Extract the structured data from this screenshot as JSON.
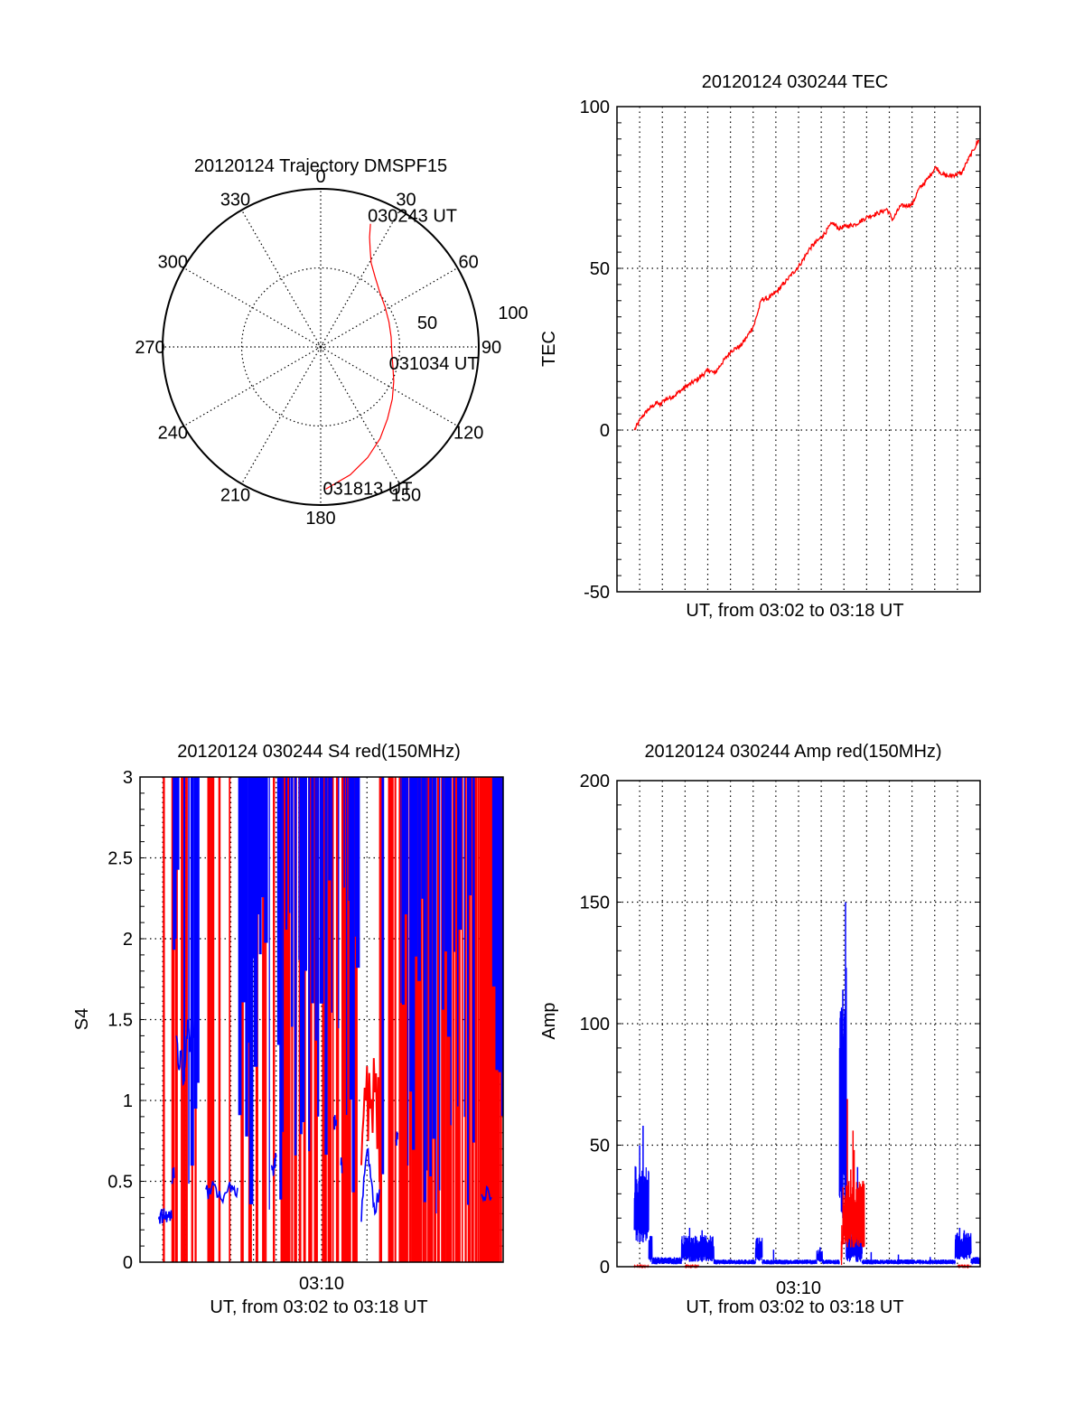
{
  "chart_data": [
    {
      "id": "trajectory",
      "type": "scatter",
      "subtype": "polar",
      "title": "20120124 Trajectory DMSPF15",
      "azimuth_ticks": [
        "0",
        "30",
        "60",
        "90",
        "120",
        "150",
        "180",
        "210",
        "240",
        "270",
        "300",
        "330"
      ],
      "radial_ticks": [
        "50",
        "100"
      ],
      "radial_range": [
        0,
        100
      ],
      "grid": true,
      "series": [
        {
          "name": "trajectory",
          "color": "#ff0000",
          "points_az_r": [
            [
              22,
              84
            ],
            [
              24,
              76
            ],
            [
              27,
              69
            ],
            [
              31,
              62
            ],
            [
              38,
              56
            ],
            [
              47,
              51
            ],
            [
              58,
              48
            ],
            [
              70,
              46
            ],
            [
              82,
              45
            ],
            [
              93,
              45
            ],
            [
              104,
              47
            ],
            [
              115,
              51
            ],
            [
              126,
              56
            ],
            [
              137,
              62
            ],
            [
              147,
              69
            ],
            [
              157,
              76
            ],
            [
              167,
              83
            ],
            [
              178,
              90
            ]
          ]
        }
      ],
      "annotations": [
        {
          "text": "030243 UT",
          "az": 22,
          "r": 84
        },
        {
          "text": "031034 UT",
          "az": 93,
          "r": 45
        },
        {
          "text": "031813 UT",
          "az": 178,
          "r": 90
        }
      ]
    },
    {
      "id": "tec",
      "type": "line",
      "title": "20120124 030244 TEC",
      "xlabel": "UT, from 03:02 to 03:18 UT",
      "ylabel": "TEC",
      "xlim_minutes": [
        0,
        16
      ],
      "ylim": [
        -50,
        100
      ],
      "yticks": [
        "-50",
        "0",
        "50",
        "100"
      ],
      "xticks": [],
      "grid": true,
      "series": [
        {
          "name": "TEC",
          "color": "#ff0000",
          "x_minutes": [
            0.77,
            1.06,
            1.4,
            1.79,
            1.9,
            2.06,
            2.5,
            3.05,
            3.5,
            4.05,
            4.3,
            4.6,
            5.05,
            5.44,
            5.7,
            6.04,
            6.37,
            6.7,
            7.04,
            7.5,
            8.06,
            8.5,
            9.07,
            9.5,
            9.76,
            10.07,
            10.5,
            11.06,
            11.5,
            11.9,
            12.15,
            12.48,
            13.01,
            13.28,
            13.68,
            14.05,
            14.35,
            14.61,
            15.2,
            15.4,
            15.7,
            15.94
          ],
          "y": [
            0,
            3.7,
            6.5,
            8.6,
            7.5,
            9.3,
            10.5,
            13.5,
            15.5,
            18.6,
            17.5,
            20.5,
            24.6,
            26,
            28.5,
            32.5,
            40.4,
            40.8,
            42.8,
            46.5,
            51.1,
            56.2,
            60.1,
            64.1,
            62.3,
            63,
            63.6,
            66,
            67,
            68.3,
            65,
            69.2,
            69.7,
            74.3,
            77.6,
            81.3,
            79,
            78.5,
            79.5,
            82.7,
            86.5,
            89.7
          ]
        }
      ]
    },
    {
      "id": "s4",
      "type": "line",
      "title": "20120124 030244 S4 red(150MHz)",
      "xlabel": "UT, from 03:02 to 03:18 UT",
      "ylabel": "S4",
      "xlim_minutes": [
        0,
        16
      ],
      "ylim": [
        0,
        3
      ],
      "yticks": [
        "0",
        "0.5",
        "1",
        "1.5",
        "2",
        "2.5",
        "3"
      ],
      "xticks": [
        {
          "minute": 8,
          "label": "03:10"
        }
      ],
      "grid": true,
      "series": [
        {
          "name": "blue",
          "color": "#0000ff",
          "segments": [
            {
              "x_minutes": [
                0.8,
                0.9,
                1.0,
                1.1,
                1.2,
                1.3,
                1.4
              ],
              "y": [
                0.27,
                0.3,
                0.26,
                0.29,
                0.28,
                0.3,
                0.27
              ]
            },
            {
              "x_minutes": [
                1.4,
                1.45,
                1.5
              ],
              "y": [
                0.5,
                0.58,
                0.52
              ]
            },
            {
              "x_minutes": [
                1.6,
                1.7,
                1.8,
                1.9,
                2.0,
                2.1,
                2.2,
                2.3,
                2.4
              ],
              "y": [
                1.4,
                1.2,
                1.3,
                1.1,
                1.25,
                1.5,
                1.3,
                1.6,
                1.4
              ]
            },
            {
              "x_minutes": [
                2.9,
                3.1,
                3.3,
                3.5,
                3.7,
                3.9,
                4.1,
                4.3
              ],
              "y": [
                0.45,
                0.42,
                0.48,
                0.44,
                0.41,
                0.47,
                0.45,
                0.46
              ]
            },
            {
              "x_minutes": [
                5.8,
                5.9,
                6.0
              ],
              "y": [
                0.6,
                0.58,
                0.65
              ]
            },
            {
              "x_minutes": [
                8.55,
                8.6,
                8.65
              ],
              "y": [
                0.9,
                0.85,
                0.88
              ]
            },
            {
              "x_minutes": [
                8.85,
                8.9
              ],
              "y": [
                0.6,
                0.55
              ]
            },
            {
              "x_minutes": [
                9.75,
                9.9,
                10.05,
                10.2,
                10.35,
                10.55
              ],
              "y": [
                0.25,
                0.55,
                0.7,
                0.5,
                0.3,
                0.45
              ]
            },
            {
              "x_minutes": [
                11.25,
                11.3,
                11.35
              ],
              "y": [
                0.75,
                0.72,
                0.8
              ]
            },
            {
              "x_minutes": [
                15.05,
                15.2,
                15.35,
                15.5
              ],
              "y": [
                0.42,
                0.38,
                0.44,
                0.4
              ]
            }
          ],
          "spike_minutes": [
            1.5,
            1.55,
            1.65,
            1.95,
            2.15,
            2.3,
            2.45,
            2.55,
            4.4,
            4.55,
            4.7,
            4.8,
            4.9,
            5.0,
            5.1,
            5.2,
            5.3,
            5.4,
            5.55,
            5.7,
            6.1,
            6.2,
            6.3,
            6.45,
            6.6,
            6.7,
            6.85,
            7.0,
            7.1,
            7.2,
            7.3,
            7.45,
            7.6,
            7.75,
            7.85,
            8.0,
            8.2,
            8.35,
            8.45,
            8.75,
            9.0,
            9.1,
            9.2,
            9.3,
            9.4,
            9.5,
            9.6,
            10.7,
            11.5,
            11.6,
            11.7,
            11.8,
            11.95,
            12.05,
            12.15,
            12.3,
            12.45,
            12.55,
            12.65,
            12.8,
            12.95,
            13.05,
            13.2,
            13.35,
            13.5,
            13.6,
            13.7,
            13.85,
            14.0,
            14.1,
            14.3,
            14.45,
            14.55,
            14.7,
            15.6,
            15.75,
            15.85,
            15.95
          ]
        },
        {
          "name": "red",
          "color": "#ff0000",
          "spike_minutes": [
            1.05,
            1.45,
            1.6,
            1.85,
            1.95,
            2.05,
            2.3,
            2.45,
            3.05,
            3.2,
            3.5,
            3.95,
            4.5,
            4.85,
            5.15,
            5.45,
            5.55,
            5.9,
            6.25,
            6.35,
            6.45,
            6.55,
            6.7,
            6.85,
            7.05,
            7.25,
            7.5,
            7.75,
            8.1,
            8.2,
            8.35,
            8.5,
            8.7,
            8.95,
            9.05,
            9.15,
            9.25,
            9.4,
            9.5,
            10.6,
            11.0,
            11.1,
            11.25,
            11.45,
            11.55,
            11.65,
            11.75,
            11.9,
            12.0,
            12.1,
            12.2,
            12.35,
            12.5,
            12.6,
            12.75,
            12.85,
            13.0,
            13.15,
            13.3,
            13.4,
            13.55,
            13.65,
            13.8,
            13.95,
            14.05,
            14.2,
            14.35,
            14.5,
            14.65,
            14.8,
            14.9,
            15.0,
            15.05,
            15.1,
            15.15,
            15.2,
            15.25,
            15.3,
            15.35,
            15.4,
            15.45,
            15.5,
            15.55,
            15.6,
            15.7,
            15.8,
            15.9
          ],
          "segments": [
            {
              "x_minutes": [
                9.75,
                9.85,
                9.95,
                10.05,
                10.15,
                10.25,
                10.35,
                10.45,
                10.55
              ],
              "y": [
                0.6,
                0.9,
                1.0,
                0.75,
                0.95,
                0.8,
                1.05,
                0.7,
                0.5
              ]
            }
          ]
        }
      ]
    },
    {
      "id": "amp",
      "type": "line",
      "title": "20120124 030244 Amp red(150MHz)",
      "xlabel": "UT, from 03:02 to 03:18 UT",
      "ylabel": "Amp",
      "xlim_minutes": [
        0,
        16
      ],
      "ylim": [
        0,
        200
      ],
      "yticks": [
        "0",
        "50",
        "100",
        "150",
        "200"
      ],
      "xticks": [
        {
          "minute": 8,
          "label": "03:10"
        }
      ],
      "grid": true,
      "series": [
        {
          "name": "blue",
          "color": "#0000ff",
          "bursts": [
            {
              "from": 0.76,
              "to": 1.4,
              "low": 10,
              "high": 42,
              "peaks": [
                [
                  1.0,
                  50
                ],
                [
                  1.15,
                  58
                ]
              ]
            },
            {
              "from": 1.4,
              "to": 1.55,
              "low": 2,
              "high": 13,
              "peaks": []
            },
            {
              "from": 1.55,
              "to": 2.84,
              "low": 1,
              "high": 4,
              "peaks": []
            },
            {
              "from": 2.84,
              "to": 4.27,
              "low": 2,
              "high": 13,
              "peaks": [
                [
                  3.2,
                  16
                ],
                [
                  3.75,
                  15
                ]
              ]
            },
            {
              "from": 4.27,
              "to": 6.1,
              "low": 1,
              "high": 3,
              "peaks": []
            },
            {
              "from": 6.1,
              "to": 6.4,
              "low": 2,
              "high": 12,
              "peaks": []
            },
            {
              "from": 6.4,
              "to": 8.8,
              "low": 1,
              "high": 3,
              "peaks": [
                [
                  6.9,
                  7
                ]
              ]
            },
            {
              "from": 8.8,
              "to": 9.05,
              "low": 2,
              "high": 7,
              "peaks": [
                [
                  8.95,
                  8
                ]
              ]
            },
            {
              "from": 9.05,
              "to": 9.8,
              "low": 1,
              "high": 3,
              "peaks": []
            },
            {
              "from": 9.8,
              "to": 10.1,
              "low": 20,
              "high": 112,
              "peaks": [
                [
                  9.95,
                  114
                ],
                [
                  10.07,
                  150
                ],
                [
                  10.1,
                  123
                ]
              ]
            },
            {
              "from": 10.1,
              "to": 10.8,
              "low": 2,
              "high": 16,
              "peaks": [
                [
                  10.6,
                  41
                ],
                [
                  10.55,
                  23
                ]
              ]
            },
            {
              "from": 10.8,
              "to": 14.9,
              "low": 1,
              "high": 3,
              "peaks": [
                [
                  11.2,
                  6
                ],
                [
                  12.4,
                  5
                ],
                [
                  13.8,
                  4
                ]
              ]
            },
            {
              "from": 14.9,
              "to": 15.6,
              "low": 3,
              "high": 14,
              "peaks": [
                [
                  15.1,
                  16
                ],
                [
                  15.3,
                  15
                ]
              ]
            },
            {
              "from": 15.6,
              "to": 16.0,
              "low": 1,
              "high": 4,
              "peaks": []
            }
          ]
        },
        {
          "name": "red",
          "color": "#ff0000",
          "bursts": [
            {
              "from": 0.76,
              "to": 1.4,
              "low": 0,
              "high": 0.5,
              "peaks": []
            },
            {
              "from": 3.0,
              "to": 3.6,
              "low": 0,
              "high": 0.5,
              "peaks": []
            },
            {
              "from": 9.88,
              "to": 9.92,
              "low": 0,
              "high": 18,
              "peaks": []
            },
            {
              "from": 9.95,
              "to": 10.9,
              "low": 8,
              "high": 36,
              "peaks": [
                [
                  10.15,
                  69
                ],
                [
                  10.4,
                  56
                ],
                [
                  10.45,
                  48
                ],
                [
                  10.3,
                  40
                ],
                [
                  10.85,
                  19
                ]
              ]
            },
            {
              "from": 15.0,
              "to": 15.6,
              "low": 0,
              "high": 0.5,
              "peaks": []
            }
          ]
        }
      ]
    }
  ]
}
